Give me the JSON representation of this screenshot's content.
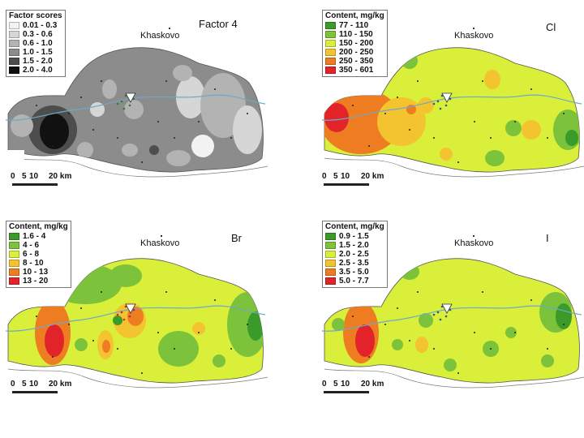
{
  "panels": [
    {
      "id": "factor4",
      "title": "Factor 4",
      "town": "Khaskovo",
      "legend": {
        "title": "Factor scores",
        "items": [
          {
            "label": "0.01 - 0.3",
            "color": "#f2f2f2"
          },
          {
            "label": "0.3 - 0.6",
            "color": "#d6d6d6"
          },
          {
            "label": "0.6 - 1.0",
            "color": "#b3b3b3"
          },
          {
            "label": "1.0 - 1.5",
            "color": "#8c8c8c"
          },
          {
            "label": "1.5 - 2.0",
            "color": "#4d4d4d"
          },
          {
            "label": "2.0 - 4.0",
            "color": "#111111"
          }
        ]
      },
      "scale": {
        "labels": [
          "0",
          "5",
          "10",
          "20 km"
        ]
      }
    },
    {
      "id": "cl",
      "title": "Cl",
      "town": "Khaskovo",
      "legend": {
        "title": "Content, mg/kg",
        "items": [
          {
            "label": "77 - 110",
            "color": "#3a9a2a"
          },
          {
            "label": "110 - 150",
            "color": "#7cc23a"
          },
          {
            "label": "150 - 200",
            "color": "#d9ef3a"
          },
          {
            "label": "200 - 250",
            "color": "#f4c430"
          },
          {
            "label": "250 - 350",
            "color": "#ee7d22"
          },
          {
            "label": "350 - 601",
            "color": "#e3232a"
          }
        ]
      },
      "scale": {
        "labels": [
          "0",
          "5",
          "10",
          "20 km"
        ]
      }
    },
    {
      "id": "br",
      "title": "Br",
      "town": "Khaskovo",
      "legend": {
        "title": "Content, mg/kg",
        "items": [
          {
            "label": "1.6 - 4",
            "color": "#3a9a2a"
          },
          {
            "label": "4 - 6",
            "color": "#7cc23a"
          },
          {
            "label": "6 - 8",
            "color": "#d9ef3a"
          },
          {
            "label": "8 - 10",
            "color": "#f4c430"
          },
          {
            "label": "10 - 13",
            "color": "#ee7d22"
          },
          {
            "label": "13 - 20",
            "color": "#e3232a"
          }
        ]
      },
      "scale": {
        "labels": [
          "0",
          "5",
          "10",
          "20 km"
        ]
      }
    },
    {
      "id": "i",
      "title": "I",
      "town": "Khaskovo",
      "legend": {
        "title": "Content, mg/kg",
        "items": [
          {
            "label": "0.9 - 1.5",
            "color": "#3a9a2a"
          },
          {
            "label": "1.5 - 2.0",
            "color": "#7cc23a"
          },
          {
            "label": "2.0 - 2.5",
            "color": "#d9ef3a"
          },
          {
            "label": "2.5 - 3.5",
            "color": "#f4c430"
          },
          {
            "label": "3.5 - 5.0",
            "color": "#ee7d22"
          },
          {
            "label": "5.0 - 7.7",
            "color": "#e3232a"
          }
        ]
      },
      "scale": {
        "labels": [
          "0",
          "5",
          "10",
          "20 km"
        ]
      }
    }
  ],
  "colors": {
    "river": "#6fa8c8",
    "road": "#7a7a7a",
    "border": "#555555"
  }
}
